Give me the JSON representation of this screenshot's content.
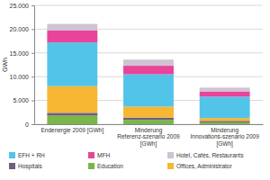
{
  "chart_data": {
    "type": "bar",
    "stacked": true,
    "grid": true,
    "y_label": "GWh",
    "categories": [
      "Endenergie 2009 [GWh]",
      "Minderung Referenz-szenario 2009 [GWh]",
      "Minderung Innovations-szenario 2009 [GWh]"
    ],
    "ylim": [
      0,
      25000
    ],
    "yticks": [
      0,
      {
        "value": 5000,
        "label": "5.000"
      },
      {
        "value": 10000,
        "label": "10.000"
      },
      {
        "value": 15000,
        "label": "15.000"
      },
      {
        "value": 20000,
        "label": "20.000"
      },
      {
        "value": 25000,
        "label": "25.000"
      }
    ],
    "series": [
      {
        "name": "Education",
        "color": "#7ab648",
        "values": [
          1800,
          900,
          400
        ]
      },
      {
        "name": "Hospitals",
        "color": "#6e5f7a",
        "values": [
          600,
          500,
          300
        ]
      },
      {
        "name": "Offices, Administrator",
        "color": "#f7b733",
        "values": [
          5600,
          2300,
          600
        ]
      },
      {
        "name": "EFH + RH",
        "color": "#52c4ea",
        "values": [
          9200,
          6800,
          4500
        ]
      },
      {
        "name": "MFH",
        "color": "#e8449a",
        "values": [
          2500,
          1800,
          1100
        ]
      },
      {
        "name": "Hotel, Cafés, Restaurants",
        "color": "#cfc3d3",
        "values": [
          1400,
          1300,
          800
        ]
      }
    ]
  }
}
